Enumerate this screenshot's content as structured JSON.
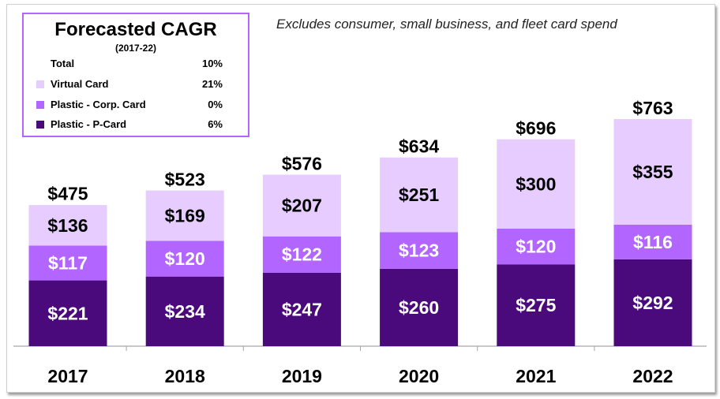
{
  "chart_data": {
    "type": "bar",
    "stacked": true,
    "note": "Excludes consumer, small business, and fleet card spend",
    "categories": [
      "2017",
      "2018",
      "2019",
      "2020",
      "2021",
      "2022"
    ],
    "series": [
      {
        "name": "Plastic - P-Card",
        "color": "#4a0a7c",
        "label_color": "#ffffff",
        "values": [
          221,
          234,
          247,
          260,
          275,
          292
        ]
      },
      {
        "name": "Plastic - Corp. Card",
        "color": "#b266ff",
        "label_color": "#ffffff",
        "values": [
          117,
          120,
          122,
          123,
          120,
          116
        ]
      },
      {
        "name": "Virtual Card",
        "color": "#e6ccff",
        "label_color": "#000000",
        "values": [
          136,
          169,
          207,
          251,
          300,
          355
        ]
      }
    ],
    "totals": [
      475,
      523,
      576,
      634,
      696,
      763
    ],
    "value_prefix": "$",
    "ylim": [
      0,
      800
    ],
    "grid": false,
    "legend": {
      "title": "Forecasted CAGR",
      "subtitle": "(2017-22)",
      "placement": "top-left",
      "rows": [
        {
          "label": "Total",
          "value": "10%",
          "color": null
        },
        {
          "label": "Virtual Card",
          "value": "21%",
          "color": "#e6ccff"
        },
        {
          "label": "Plastic - Corp. Card",
          "value": "0%",
          "color": "#b266ff"
        },
        {
          "label": "Plastic - P-Card",
          "value": "6%",
          "color": "#4a0a7c"
        }
      ]
    }
  }
}
